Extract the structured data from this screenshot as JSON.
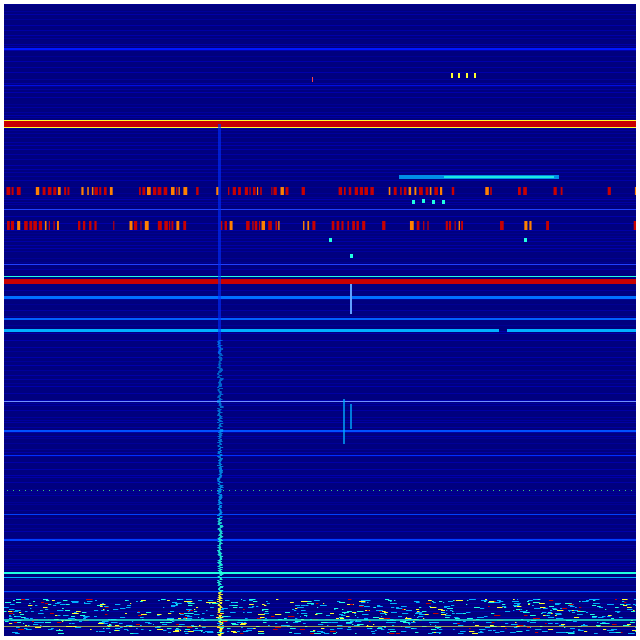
{
  "colormap": {
    "background": "#00007f",
    "low": "#0000c8",
    "mid_low": "#0050ff",
    "mid": "#00b0ff",
    "cyan": "#20ffe0",
    "yellow": "#ffff30",
    "orange": "#ff8000",
    "red": "#c80000"
  }
}
